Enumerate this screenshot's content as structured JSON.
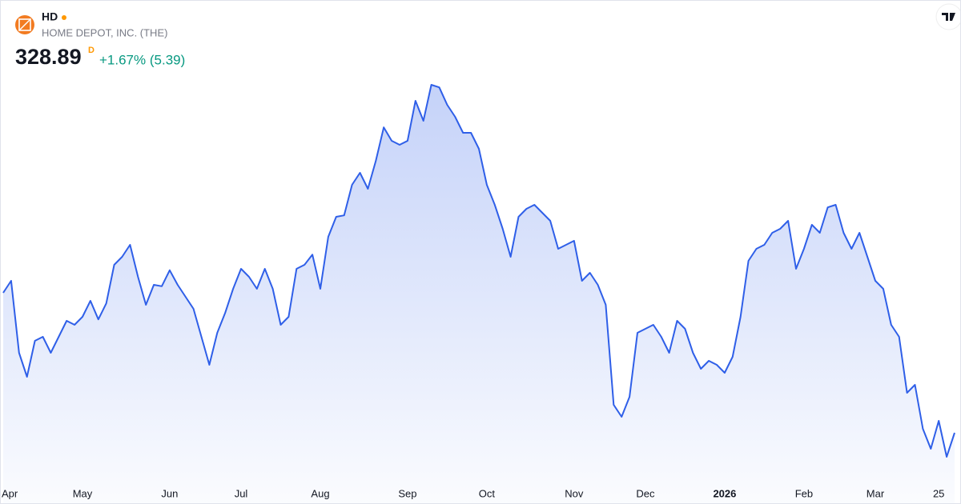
{
  "header": {
    "ticker": "HD",
    "company": "HOME DEPOT, INC. (THE)",
    "price": "328.89",
    "price_flag": "D",
    "change": "+1.67% (5.39)"
  },
  "chart_data": {
    "type": "area",
    "color": "#2f5fe8",
    "categories": [
      null,
      "Apr",
      null,
      null,
      null,
      null,
      null,
      null,
      null,
      null,
      "May",
      null,
      null,
      null,
      null,
      null,
      null,
      null,
      null,
      null,
      null,
      "Jun",
      null,
      null,
      null,
      null,
      null,
      null,
      null,
      null,
      "Jul",
      null,
      null,
      null,
      null,
      null,
      null,
      null,
      null,
      null,
      "Aug",
      null,
      null,
      null,
      null,
      null,
      null,
      null,
      null,
      null,
      null,
      "Sep",
      null,
      null,
      null,
      null,
      null,
      null,
      null,
      null,
      null,
      "Oct",
      null,
      null,
      null,
      null,
      null,
      null,
      null,
      null,
      null,
      null,
      "Nov",
      null,
      null,
      null,
      null,
      null,
      null,
      null,
      null,
      "Dec",
      null,
      null,
      null,
      null,
      null,
      null,
      null,
      null,
      null,
      "2026",
      null,
      null,
      null,
      null,
      null,
      null,
      null,
      null,
      null,
      "Feb",
      null,
      null,
      null,
      null,
      null,
      null,
      null,
      null,
      "Mar",
      null,
      null,
      null,
      null,
      null,
      null,
      null,
      "25",
      null,
      null
    ],
    "values": [
      367.4,
      370.7,
      350.9,
      344.3,
      354.2,
      355.3,
      350.9,
      355.3,
      359.7,
      358.6,
      360.8,
      365.2,
      360.1,
      364.5,
      375.1,
      377.3,
      380.6,
      371.8,
      364.1,
      369.6,
      369.2,
      373.6,
      369.6,
      366.3,
      363.0,
      355.3,
      347.6,
      356.4,
      361.9,
      368.5,
      374.0,
      371.8,
      368.5,
      374.0,
      368.5,
      358.6,
      360.8,
      374.0,
      375.1,
      377.9,
      368.5,
      382.8,
      388.3,
      388.7,
      397.1,
      400.4,
      396.0,
      403.7,
      412.9,
      409.2,
      408.1,
      409.2,
      420.2,
      414.7,
      424.6,
      423.9,
      419.1,
      415.8,
      411.4,
      411.4,
      407.0,
      397.1,
      391.6,
      385.0,
      377.3,
      388.3,
      390.5,
      391.6,
      389.4,
      387.2,
      379.5,
      380.6,
      381.7,
      370.7,
      372.9,
      369.6,
      364.1,
      336.6,
      333.3,
      338.8,
      356.4,
      357.5,
      358.6,
      355.3,
      350.9,
      359.7,
      357.5,
      350.9,
      346.5,
      348.7,
      347.6,
      345.4,
      349.8,
      360.8,
      376.2,
      379.5,
      380.6,
      383.9,
      385.0,
      387.2,
      374.0,
      379.5,
      386.1,
      383.9,
      390.9,
      391.6,
      383.9,
      379.5,
      383.9,
      377.3,
      370.7,
      368.5,
      358.6,
      355.3,
      339.9,
      342.1,
      330.0,
      324.5,
      332.2,
      322.3,
      328.89
    ],
    "ylim": [
      314.6,
      427.9
    ]
  }
}
